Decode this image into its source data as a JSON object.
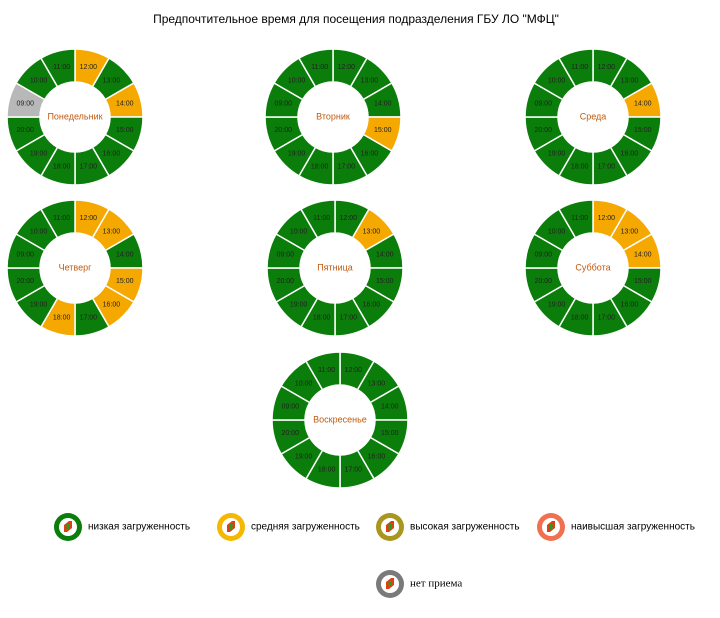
{
  "title": "Предпочтительное время для посещения подразделения ГБУ ЛО \"МФЦ\"",
  "days": [
    {
      "name": "Понедельник",
      "slots": [
        {
          "label": "12:00",
          "color": "#f5a800"
        },
        {
          "label": "13:00",
          "color": "#0a7d0a"
        },
        {
          "label": "14:00",
          "color": "#f5a800"
        },
        {
          "label": "15:00",
          "color": "#0a7d0a"
        },
        {
          "label": "16:00",
          "color": "#0a7d0a"
        },
        {
          "label": "17:00",
          "color": "#0a7d0a"
        },
        {
          "label": "18:00",
          "color": "#0a7d0a"
        },
        {
          "label": "19:00",
          "color": "#0a7d0a"
        },
        {
          "label": "20:00",
          "color": "#0a7d0a"
        },
        {
          "label": "09:00",
          "color": "#b8b8b8"
        },
        {
          "label": "10:00",
          "color": "#0a7d0a"
        },
        {
          "label": "11:00",
          "color": "#0a7d0a"
        }
      ]
    },
    {
      "name": "Вторник",
      "slots": [
        {
          "label": "12:00",
          "color": "#0a7d0a"
        },
        {
          "label": "13:00",
          "color": "#0a7d0a"
        },
        {
          "label": "14:00",
          "color": "#0a7d0a"
        },
        {
          "label": "15:00",
          "color": "#f5a800"
        },
        {
          "label": "16:00",
          "color": "#0a7d0a"
        },
        {
          "label": "17:00",
          "color": "#0a7d0a"
        },
        {
          "label": "18:00",
          "color": "#0a7d0a"
        },
        {
          "label": "19:00",
          "color": "#0a7d0a"
        },
        {
          "label": "20:00",
          "color": "#0a7d0a"
        },
        {
          "label": "09:00",
          "color": "#0a7d0a"
        },
        {
          "label": "10:00",
          "color": "#0a7d0a"
        },
        {
          "label": "11:00",
          "color": "#0a7d0a"
        }
      ]
    },
    {
      "name": "Среда",
      "slots": [
        {
          "label": "12:00",
          "color": "#0a7d0a"
        },
        {
          "label": "13:00",
          "color": "#0a7d0a"
        },
        {
          "label": "14:00",
          "color": "#f5a800"
        },
        {
          "label": "15:00",
          "color": "#0a7d0a"
        },
        {
          "label": "16:00",
          "color": "#0a7d0a"
        },
        {
          "label": "17:00",
          "color": "#0a7d0a"
        },
        {
          "label": "18:00",
          "color": "#0a7d0a"
        },
        {
          "label": "19:00",
          "color": "#0a7d0a"
        },
        {
          "label": "20:00",
          "color": "#0a7d0a"
        },
        {
          "label": "09:00",
          "color": "#0a7d0a"
        },
        {
          "label": "10:00",
          "color": "#0a7d0a"
        },
        {
          "label": "11:00",
          "color": "#0a7d0a"
        }
      ]
    },
    {
      "name": "Четверг",
      "slots": [
        {
          "label": "12:00",
          "color": "#f5a800"
        },
        {
          "label": "13:00",
          "color": "#f5a800"
        },
        {
          "label": "14:00",
          "color": "#0a7d0a"
        },
        {
          "label": "15:00",
          "color": "#f5a800"
        },
        {
          "label": "16:00",
          "color": "#f5a800"
        },
        {
          "label": "17:00",
          "color": "#0a7d0a"
        },
        {
          "label": "18:00",
          "color": "#f5a800"
        },
        {
          "label": "19:00",
          "color": "#0a7d0a"
        },
        {
          "label": "20:00",
          "color": "#0a7d0a"
        },
        {
          "label": "09:00",
          "color": "#0a7d0a"
        },
        {
          "label": "10:00",
          "color": "#0a7d0a"
        },
        {
          "label": "11:00",
          "color": "#0a7d0a"
        }
      ]
    },
    {
      "name": "Пятница",
      "slots": [
        {
          "label": "12:00",
          "color": "#0a7d0a"
        },
        {
          "label": "13:00",
          "color": "#f5a800"
        },
        {
          "label": "14:00",
          "color": "#0a7d0a"
        },
        {
          "label": "15:00",
          "color": "#0a7d0a"
        },
        {
          "label": "16:00",
          "color": "#0a7d0a"
        },
        {
          "label": "17:00",
          "color": "#0a7d0a"
        },
        {
          "label": "18:00",
          "color": "#0a7d0a"
        },
        {
          "label": "19:00",
          "color": "#0a7d0a"
        },
        {
          "label": "20:00",
          "color": "#0a7d0a"
        },
        {
          "label": "09:00",
          "color": "#0a7d0a"
        },
        {
          "label": "10:00",
          "color": "#0a7d0a"
        },
        {
          "label": "11:00",
          "color": "#0a7d0a"
        }
      ]
    },
    {
      "name": "Суббота",
      "slots": [
        {
          "label": "12:00",
          "color": "#f5a800"
        },
        {
          "label": "13:00",
          "color": "#f5a800"
        },
        {
          "label": "14:00",
          "color": "#f5a800"
        },
        {
          "label": "15:00",
          "color": "#0a7d0a"
        },
        {
          "label": "16:00",
          "color": "#0a7d0a"
        },
        {
          "label": "17:00",
          "color": "#0a7d0a"
        },
        {
          "label": "18:00",
          "color": "#0a7d0a"
        },
        {
          "label": "19:00",
          "color": "#0a7d0a"
        },
        {
          "label": "20:00",
          "color": "#0a7d0a"
        },
        {
          "label": "09:00",
          "color": "#0a7d0a"
        },
        {
          "label": "10:00",
          "color": "#0a7d0a"
        },
        {
          "label": "11:00",
          "color": "#0a7d0a"
        }
      ]
    },
    {
      "name": "Воскресенье",
      "slots": [
        {
          "label": "12:00",
          "color": "#0a7d0a"
        },
        {
          "label": "13:00",
          "color": "#0a7d0a"
        },
        {
          "label": "14:00",
          "color": "#0a7d0a"
        },
        {
          "label": "15:00",
          "color": "#0a7d0a"
        },
        {
          "label": "16:00",
          "color": "#0a7d0a"
        },
        {
          "label": "17:00",
          "color": "#0a7d0a"
        },
        {
          "label": "18:00",
          "color": "#0a7d0a"
        },
        {
          "label": "19:00",
          "color": "#0a7d0a"
        },
        {
          "label": "20:00",
          "color": "#0a7d0a"
        },
        {
          "label": "09:00",
          "color": "#0a7d0a"
        },
        {
          "label": "10:00",
          "color": "#0a7d0a"
        },
        {
          "label": "11:00",
          "color": "#0a7d0a"
        }
      ]
    }
  ],
  "legend": [
    {
      "name": "низкая загруженность",
      "color": "#0a7d0a"
    },
    {
      "name": "средняя загруженность",
      "color": "#f5b800"
    },
    {
      "name": "высокая загруженность",
      "color": "#a8961e"
    },
    {
      "name": "наивысшая загруженность",
      "color": "#f07050"
    },
    {
      "name": "нет приема",
      "color": "#7a7a7a"
    }
  ]
}
